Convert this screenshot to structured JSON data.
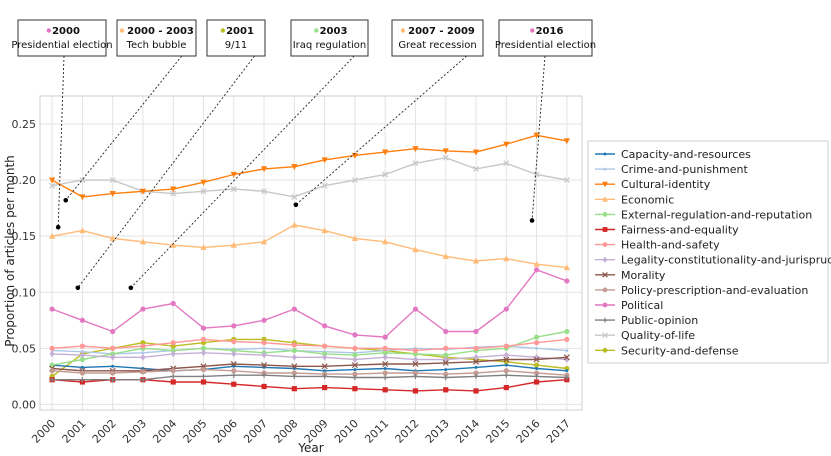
{
  "chart_data": {
    "type": "line",
    "xlabel": "Year",
    "ylabel": "Proportion of articles per month",
    "xlim": [
      1999.6,
      2017.5
    ],
    "ylim": [
      -0.005,
      0.275
    ],
    "x_ticks": [
      "2000",
      "2001",
      "2002",
      "2003",
      "2004",
      "2005",
      "2006",
      "2007",
      "2008",
      "2009",
      "2010",
      "2011",
      "2012",
      "2013",
      "2014",
      "2015",
      "2016",
      "2017"
    ],
    "y_ticks": [
      "0.00",
      "0.05",
      "0.10",
      "0.15",
      "0.20",
      "0.25"
    ],
    "x": [
      2000,
      2001,
      2002,
      2003,
      2004,
      2005,
      2006,
      2007,
      2008,
      2009,
      2010,
      2011,
      2012,
      2013,
      2014,
      2015,
      2016,
      2017
    ],
    "series": [
      {
        "name": "Capacity-and-resources",
        "color": "#1f77b4",
        "marker": "point",
        "values": [
          0.035,
          0.033,
          0.034,
          0.032,
          0.03,
          0.031,
          0.034,
          0.033,
          0.032,
          0.03,
          0.031,
          0.032,
          0.03,
          0.031,
          0.033,
          0.035,
          0.032,
          0.03
        ]
      },
      {
        "name": "Crime-and-punishment",
        "color": "#aec7e8",
        "marker": "point",
        "values": [
          0.048,
          0.047,
          0.045,
          0.046,
          0.048,
          0.05,
          0.049,
          0.05,
          0.048,
          0.047,
          0.046,
          0.048,
          0.05,
          0.049,
          0.051,
          0.052,
          0.05,
          0.048
        ]
      },
      {
        "name": "Cultural-identity",
        "color": "#ff7f0e",
        "marker": "triangle-down",
        "values": [
          0.2,
          0.185,
          0.188,
          0.19,
          0.192,
          0.198,
          0.205,
          0.21,
          0.212,
          0.218,
          0.222,
          0.225,
          0.228,
          0.226,
          0.225,
          0.232,
          0.24,
          0.235
        ]
      },
      {
        "name": "Economic",
        "color": "#ffbb78",
        "marker": "triangle-up",
        "values": [
          0.15,
          0.155,
          0.148,
          0.145,
          0.142,
          0.14,
          0.142,
          0.145,
          0.16,
          0.155,
          0.148,
          0.145,
          0.138,
          0.132,
          0.128,
          0.13,
          0.125,
          0.122
        ]
      },
      {
        "name": "External-regulation-and-reputation",
        "color": "#98df8a",
        "marker": "circle",
        "values": [
          0.035,
          0.04,
          0.045,
          0.05,
          0.048,
          0.05,
          0.048,
          0.046,
          0.048,
          0.045,
          0.044,
          0.046,
          0.045,
          0.044,
          0.048,
          0.05,
          0.06,
          0.065
        ]
      },
      {
        "name": "Fairness-and-equality",
        "color": "#d62728",
        "marker": "square",
        "values": [
          0.022,
          0.02,
          0.022,
          0.022,
          0.02,
          0.02,
          0.018,
          0.016,
          0.014,
          0.015,
          0.014,
          0.013,
          0.012,
          0.013,
          0.012,
          0.015,
          0.02,
          0.022
        ]
      },
      {
        "name": "Health-and-safety",
        "color": "#ff9896",
        "marker": "circle",
        "values": [
          0.05,
          0.052,
          0.05,
          0.052,
          0.055,
          0.058,
          0.056,
          0.055,
          0.053,
          0.052,
          0.05,
          0.05,
          0.048,
          0.05,
          0.05,
          0.052,
          0.055,
          0.058
        ]
      },
      {
        "name": "Legality-constitutionality-and-jurisprudence",
        "color": "#c5b0d5",
        "marker": "diamond",
        "values": [
          0.045,
          0.044,
          0.042,
          0.042,
          0.045,
          0.046,
          0.045,
          0.044,
          0.042,
          0.042,
          0.04,
          0.042,
          0.04,
          0.04,
          0.042,
          0.044,
          0.042,
          0.04
        ]
      },
      {
        "name": "Morality",
        "color": "#8c564b",
        "marker": "x",
        "values": [
          0.032,
          0.03,
          0.03,
          0.03,
          0.032,
          0.034,
          0.036,
          0.035,
          0.034,
          0.034,
          0.035,
          0.036,
          0.036,
          0.037,
          0.038,
          0.04,
          0.04,
          0.042
        ]
      },
      {
        "name": "Policy-prescription-and-evaluation",
        "color": "#c49c94",
        "marker": "circle",
        "values": [
          0.03,
          0.028,
          0.028,
          0.029,
          0.03,
          0.031,
          0.03,
          0.028,
          0.028,
          0.027,
          0.027,
          0.028,
          0.028,
          0.027,
          0.028,
          0.03,
          0.028,
          0.026
        ]
      },
      {
        "name": "Political",
        "color": "#e377c2",
        "marker": "circle",
        "values": [
          0.085,
          0.075,
          0.065,
          0.085,
          0.09,
          0.068,
          0.07,
          0.075,
          0.085,
          0.07,
          0.062,
          0.06,
          0.085,
          0.065,
          0.065,
          0.085,
          0.12,
          0.11
        ]
      },
      {
        "name": "Public-opinion",
        "color": "#7f7f7f",
        "marker": "plus",
        "values": [
          0.022,
          0.022,
          0.022,
          0.022,
          0.025,
          0.025,
          0.026,
          0.026,
          0.025,
          0.025,
          0.024,
          0.024,
          0.025,
          0.024,
          0.025,
          0.026,
          0.025,
          0.024
        ]
      },
      {
        "name": "Quality-of-life",
        "color": "#c7c7c7",
        "marker": "x",
        "values": [
          0.195,
          0.2,
          0.2,
          0.19,
          0.188,
          0.19,
          0.192,
          0.19,
          0.185,
          0.195,
          0.2,
          0.205,
          0.215,
          0.22,
          0.21,
          0.215,
          0.205,
          0.2
        ]
      },
      {
        "name": "Security-and-defense",
        "color": "#bcbd22",
        "marker": "circle",
        "values": [
          0.025,
          0.045,
          0.05,
          0.055,
          0.052,
          0.055,
          0.058,
          0.058,
          0.055,
          0.052,
          0.05,
          0.048,
          0.045,
          0.042,
          0.04,
          0.038,
          0.035,
          0.032
        ]
      }
    ],
    "annotations": [
      {
        "title": "2000",
        "sub": "Presidential election",
        "color": "#e377c2",
        "x": 2000.2,
        "y": 0.158
      },
      {
        "title": "2000 - 2003",
        "sub": "Tech bubble",
        "color": "#ffbb78",
        "x": 2000.45,
        "y": 0.182
      },
      {
        "title": "2001",
        "sub": "9/11",
        "color": "#bcbd22",
        "x": 2000.85,
        "y": 0.104
      },
      {
        "title": "2003",
        "sub": "Iraq regulation",
        "color": "#98df8a",
        "x": 2002.6,
        "y": 0.104
      },
      {
        "title": "2007 - 2009",
        "sub": "Great recession",
        "color": "#ffbb78",
        "x": 2008.05,
        "y": 0.178
      },
      {
        "title": "2016",
        "sub": "Presidential election",
        "color": "#e377c2",
        "x": 2015.85,
        "y": 0.164
      }
    ],
    "legend_position": "right"
  }
}
